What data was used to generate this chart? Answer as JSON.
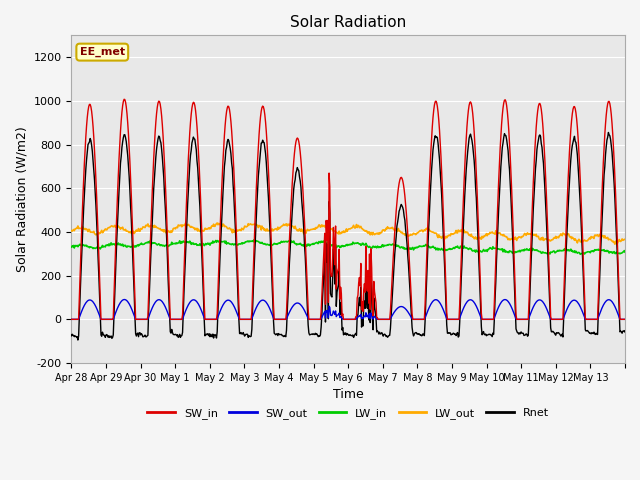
{
  "title": "Solar Radiation",
  "xlabel": "Time",
  "ylabel": "Solar Radiation (W/m2)",
  "ylim": [
    -200,
    1300
  ],
  "yticks": [
    -200,
    0,
    200,
    400,
    600,
    800,
    1000,
    1200
  ],
  "date_labels": [
    "Apr 28",
    "Apr 29",
    "Apr 30",
    "May 1",
    "May 2",
    "May 3",
    "May 4",
    "May 5",
    "May 6",
    "May 7",
    "May 8",
    "May 9",
    "May 10",
    "May 11",
    "May 12",
    "May 13"
  ],
  "annotation_text": "EE_met",
  "annotation_bg": "#ffffcc",
  "annotation_border": "#ccaa00",
  "annotation_text_color": "#800000",
  "series_colors": {
    "SW_in": "#dd0000",
    "SW_out": "#0000dd",
    "LW_in": "#00cc00",
    "LW_out": "#ffaa00",
    "Rnet": "#000000"
  },
  "background_color": "#f0f0f0",
  "plot_bg_color": "#e8e8e8",
  "grid_color": "#ffffff"
}
